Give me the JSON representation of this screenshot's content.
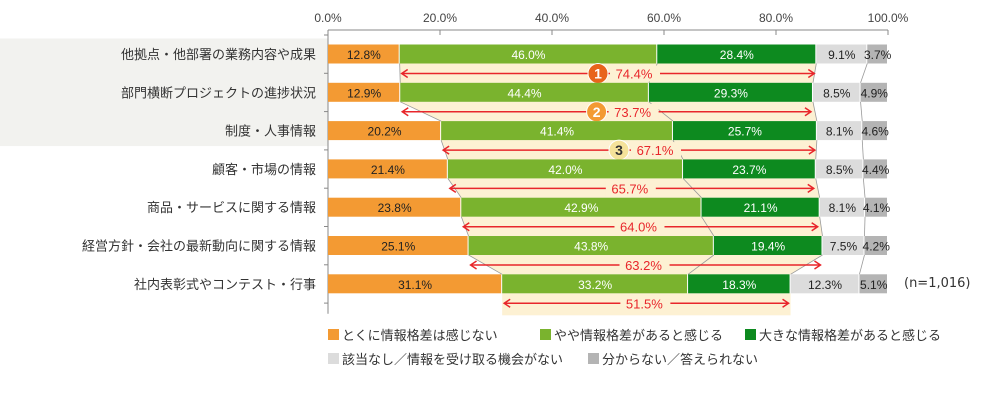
{
  "chart_data": {
    "type": "bar",
    "orientation": "horizontal",
    "stacked": true,
    "xlim": [
      0,
      100
    ],
    "xticks": [
      "0.0%",
      "20.0%",
      "40.0%",
      "60.0%",
      "80.0%",
      "100.0%"
    ],
    "categories": [
      "他拠点・他部署の業務内容や成果",
      "部門横断プロジェクトの進捗状況",
      "制度・人事情報",
      "顧客・市場の情報",
      "商品・サービスに関する情報",
      "経営方針・会社の最新動向に関する情報",
      "社内表彰式やコンテスト・行事"
    ],
    "series": [
      {
        "name": "とくに情報格差は感じない",
        "color": "#f39a33",
        "values": [
          12.8,
          12.9,
          20.2,
          21.4,
          23.8,
          25.1,
          31.1
        ]
      },
      {
        "name": "やや情報格差があると感じる",
        "color": "#7ab32e",
        "values": [
          46.0,
          44.4,
          41.4,
          42.0,
          42.9,
          43.8,
          33.2
        ]
      },
      {
        "name": "大きな情報格差があると感じる",
        "color": "#0d8a1f",
        "values": [
          28.4,
          29.3,
          25.7,
          23.7,
          21.1,
          19.4,
          18.3
        ]
      },
      {
        "name": "該当なし／情報を受け取る機会がない",
        "color": "#dcdcdc",
        "values": [
          9.1,
          8.5,
          8.1,
          8.5,
          8.1,
          7.5,
          12.3
        ]
      },
      {
        "name": "分からない／答えられない",
        "color": "#b4b4b4",
        "values": [
          3.7,
          4.9,
          4.6,
          4.4,
          4.1,
          4.2,
          5.1
        ]
      }
    ],
    "totals": [
      {
        "rank": "1",
        "label": "74.4%"
      },
      {
        "rank": "2",
        "label": "73.7%"
      },
      {
        "rank": "3",
        "label": "67.1%"
      },
      {
        "rank": "",
        "label": "65.7%"
      },
      {
        "rank": "",
        "label": "64.0%"
      },
      {
        "rank": "",
        "label": "63.2%"
      },
      {
        "rank": "",
        "label": "51.5%"
      }
    ],
    "rank_colors": [
      "#e8641b",
      "#f39a33",
      "#f5e29a"
    ],
    "annotation_color": "#e8262b",
    "note": "(n=1,016)"
  }
}
